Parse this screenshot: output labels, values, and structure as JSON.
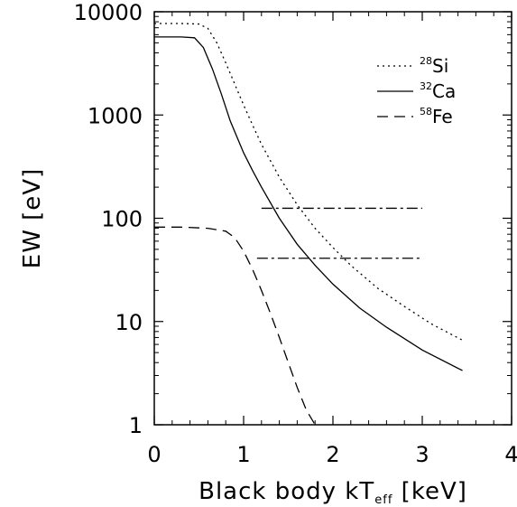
{
  "chart_data": {
    "type": "line",
    "xlabel_prefix": "Black body kT",
    "xlabel_sub": "eff",
    "xlabel_suffix": "[keV]",
    "ylabel": "EW [eV]",
    "xlim": [
      0,
      4
    ],
    "ylim": [
      1,
      10000
    ],
    "yscale": "log",
    "xticks": [
      0,
      1,
      2,
      3,
      4
    ],
    "xtick_labels": [
      "0",
      "1",
      "2",
      "3",
      "4"
    ],
    "yticks": [
      1,
      10,
      100,
      1000,
      10000
    ],
    "ytick_labels": [
      "1",
      "10",
      "100",
      "1000",
      "10000"
    ],
    "grid": false,
    "legend_position": "top-right",
    "series": [
      {
        "sup": "28",
        "name": "Si",
        "style": "dotted",
        "x": [
          0.0,
          0.3,
          0.5,
          0.6,
          0.7,
          0.8,
          0.9,
          1.0,
          1.1,
          1.2,
          1.4,
          1.6,
          1.8,
          2.0,
          2.2,
          2.5,
          2.8,
          3.1,
          3.45
        ],
        "y": [
          7700,
          7700,
          7600,
          6900,
          5000,
          3200,
          2000,
          1250,
          800,
          520,
          250,
          135,
          80,
          52,
          35,
          21,
          14,
          9.5,
          6.6
        ]
      },
      {
        "sup": "32",
        "name": "Ca",
        "style": "solid",
        "x": [
          0.0,
          0.3,
          0.45,
          0.55,
          0.65,
          0.75,
          0.85,
          1.0,
          1.1,
          1.2,
          1.4,
          1.6,
          1.8,
          2.0,
          2.3,
          2.6,
          3.0,
          3.45
        ],
        "y": [
          5700,
          5700,
          5600,
          4500,
          2800,
          1600,
          880,
          430,
          290,
          200,
          100,
          56,
          35,
          23,
          13.5,
          8.8,
          5.3,
          3.35
        ]
      },
      {
        "sup": "58",
        "name": "Fe",
        "style": "dashed",
        "x": [
          0.0,
          0.3,
          0.6,
          0.8,
          0.9,
          1.0,
          1.1,
          1.2,
          1.3,
          1.4,
          1.5,
          1.6,
          1.7,
          1.8
        ],
        "y": [
          82,
          82,
          80,
          75,
          65,
          48,
          32,
          20,
          12,
          7,
          4,
          2.3,
          1.4,
          0.95
        ]
      }
    ],
    "horizontal_lines": [
      {
        "style": "dash-dot",
        "y": 125,
        "x": [
          1.2,
          3.0
        ]
      },
      {
        "style": "dash-dot",
        "y": 41,
        "x": [
          1.15,
          3.0
        ]
      }
    ]
  }
}
